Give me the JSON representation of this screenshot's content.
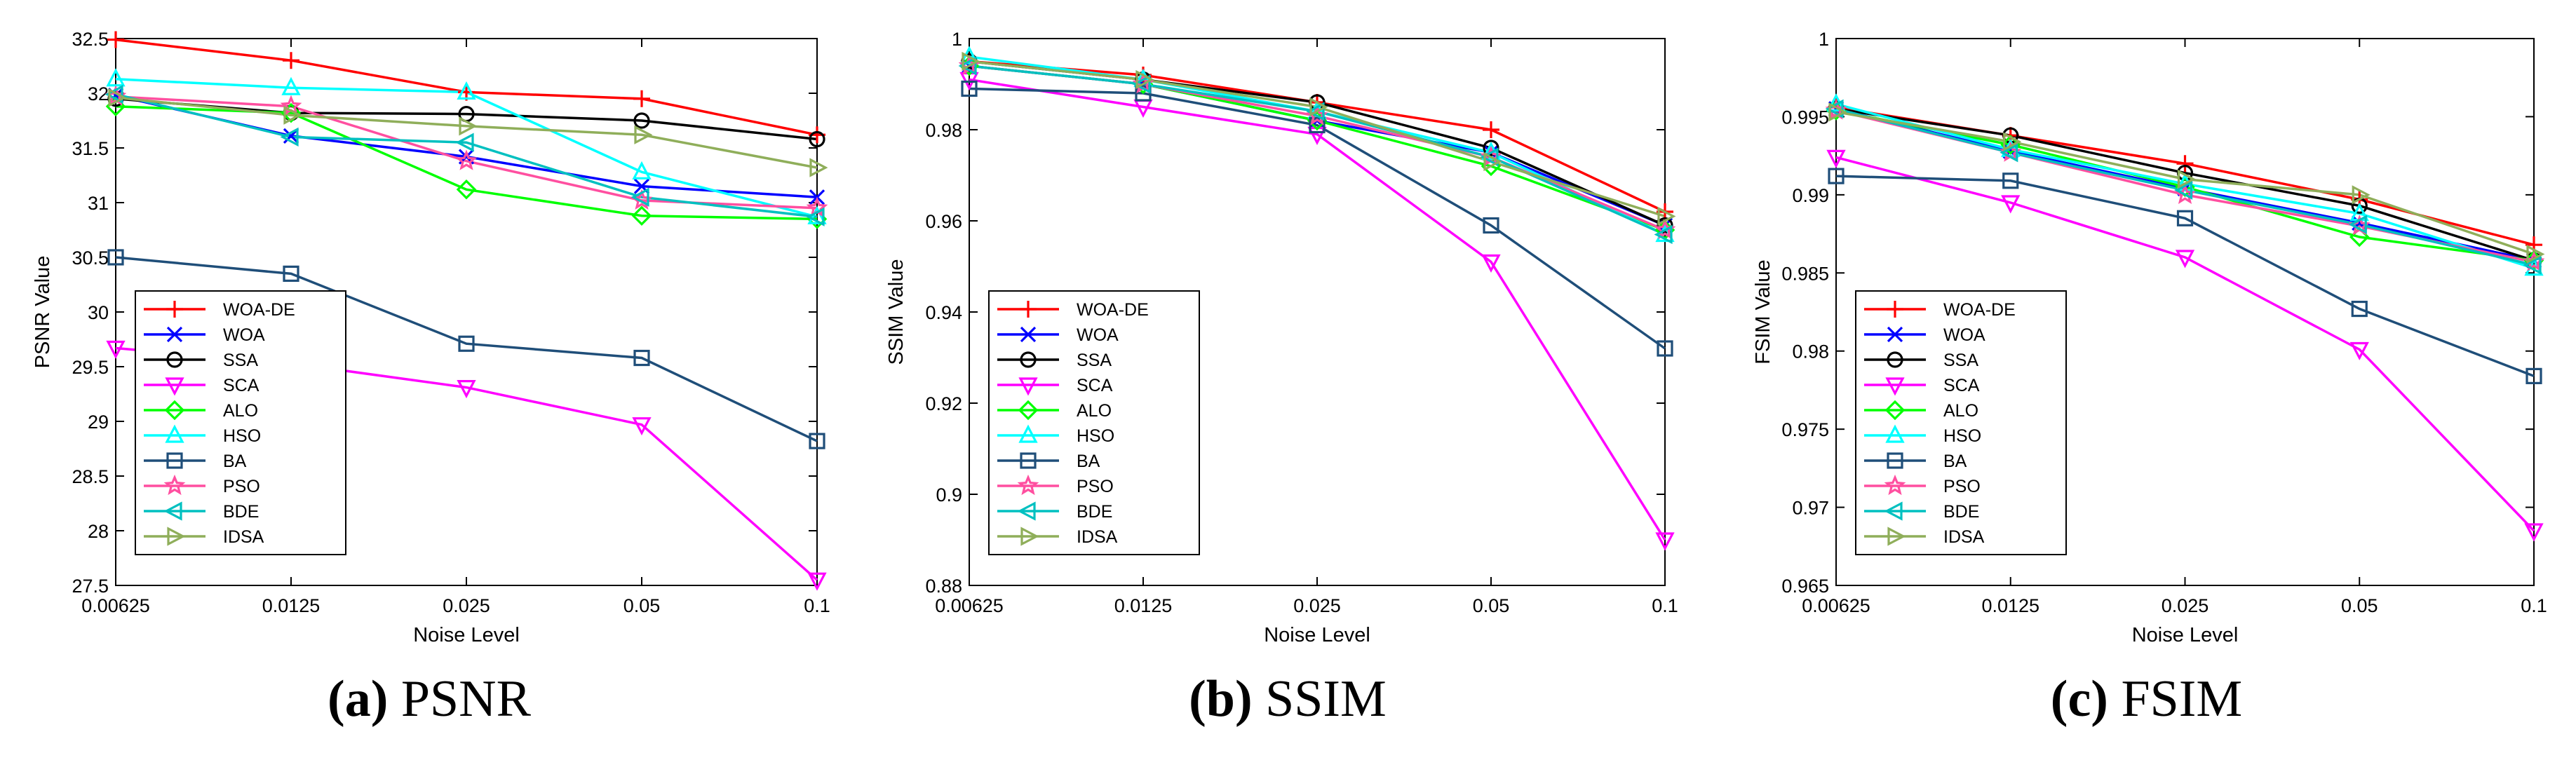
{
  "series_style": [
    {
      "name": "WOA-DE",
      "color": "#ff0000",
      "marker": "plus"
    },
    {
      "name": "WOA",
      "color": "#0000ff",
      "marker": "x"
    },
    {
      "name": "SSA",
      "color": "#000000",
      "marker": "circle"
    },
    {
      "name": "SCA",
      "color": "#ff00ff",
      "marker": "triangle-down"
    },
    {
      "name": "ALO",
      "color": "#00ff00",
      "marker": "diamond"
    },
    {
      "name": "HSO",
      "color": "#00ffff",
      "marker": "triangle-up"
    },
    {
      "name": "BA",
      "color": "#1f4e79",
      "marker": "square"
    },
    {
      "name": "PSO",
      "color": "#ff4fa0",
      "marker": "star"
    },
    {
      "name": "BDE",
      "color": "#00c0c0",
      "marker": "triangle-left"
    },
    {
      "name": "IDSA",
      "color": "#8fae5a",
      "marker": "triangle-right"
    }
  ],
  "chart_data": [
    {
      "type": "line",
      "caption_letter": "(a)",
      "caption_text": "PSNR",
      "xlabel": "Noise Level",
      "ylabel": "PSNR Value",
      "categories": [
        "0.00625",
        "0.0125",
        "0.025",
        "0.05",
        "0.1"
      ],
      "ylim": [
        27.5,
        32.5
      ],
      "yticks": [
        27.5,
        28,
        28.5,
        29,
        29.5,
        30,
        30.5,
        31,
        31.5,
        32,
        32.5
      ],
      "ytick_labels": [
        "27.5",
        "28",
        "28.5",
        "29",
        "29.5",
        "30",
        "30.5",
        "31",
        "31.5",
        "32",
        "32.5"
      ],
      "legend": "lower-left",
      "series": [
        {
          "name": "WOA-DE",
          "values": [
            32.49,
            32.3,
            32.01,
            31.95,
            31.62
          ]
        },
        {
          "name": "WOA",
          "values": [
            31.98,
            31.61,
            31.42,
            31.15,
            31.05
          ]
        },
        {
          "name": "SSA",
          "values": [
            31.95,
            31.82,
            31.81,
            31.75,
            31.58
          ]
        },
        {
          "name": "SCA",
          "values": [
            29.67,
            29.53,
            29.31,
            28.97,
            27.55
          ]
        },
        {
          "name": "ALO",
          "values": [
            31.88,
            31.82,
            31.12,
            30.88,
            30.85
          ]
        },
        {
          "name": "HSO",
          "values": [
            32.13,
            32.05,
            32.01,
            31.28,
            30.87
          ]
        },
        {
          "name": "BA",
          "values": [
            30.5,
            30.35,
            29.71,
            29.58,
            28.82
          ]
        },
        {
          "name": "PSO",
          "values": [
            31.97,
            31.88,
            31.38,
            31.02,
            30.95
          ]
        },
        {
          "name": "BDE",
          "values": [
            31.99,
            31.6,
            31.55,
            31.05,
            30.87
          ]
        },
        {
          "name": "IDSA",
          "values": [
            31.96,
            31.8,
            31.7,
            31.62,
            31.32
          ]
        }
      ]
    },
    {
      "type": "line",
      "caption_letter": "(b)",
      "caption_text": "SSIM",
      "xlabel": "Noise Level",
      "ylabel": "SSIM Value",
      "categories": [
        "0.00625",
        "0.0125",
        "0.025",
        "0.05",
        "0.1"
      ],
      "ylim": [
        0.88,
        1.0
      ],
      "yticks": [
        0.88,
        0.9,
        0.92,
        0.94,
        0.96,
        0.98,
        1.0
      ],
      "ytick_labels": [
        "0.88",
        "0.9",
        "0.92",
        "0.94",
        "0.96",
        "0.98",
        "1"
      ],
      "legend": "lower-left",
      "series": [
        {
          "name": "WOA-DE",
          "values": [
            0.995,
            0.992,
            0.986,
            0.98,
            0.962
          ]
        },
        {
          "name": "WOA",
          "values": [
            0.994,
            0.99,
            0.982,
            0.975,
            0.959
          ]
        },
        {
          "name": "SSA",
          "values": [
            0.995,
            0.991,
            0.986,
            0.976,
            0.959
          ]
        },
        {
          "name": "SCA",
          "values": [
            0.991,
            0.985,
            0.979,
            0.951,
            0.89
          ]
        },
        {
          "name": "ALO",
          "values": [
            0.994,
            0.99,
            0.982,
            0.972,
            0.958
          ]
        },
        {
          "name": "HSO",
          "values": [
            0.996,
            0.991,
            0.984,
            0.975,
            0.957
          ]
        },
        {
          "name": "BA",
          "values": [
            0.989,
            0.988,
            0.981,
            0.959,
            0.932
          ]
        },
        {
          "name": "PSO",
          "values": [
            0.994,
            0.99,
            0.983,
            0.974,
            0.958
          ]
        },
        {
          "name": "BDE",
          "values": [
            0.994,
            0.99,
            0.984,
            0.974,
            0.957
          ]
        },
        {
          "name": "IDSA",
          "values": [
            0.995,
            0.991,
            0.985,
            0.973,
            0.961
          ]
        }
      ]
    },
    {
      "type": "line",
      "caption_letter": "(c)",
      "caption_text": "FSIM",
      "xlabel": "Noise Level",
      "ylabel": "FSIM Value",
      "categories": [
        "0.00625",
        "0.0125",
        "0.025",
        "0.05",
        "0.1"
      ],
      "ylim": [
        0.965,
        1.0
      ],
      "yticks": [
        0.965,
        0.97,
        0.975,
        0.98,
        0.985,
        0.99,
        0.995,
        1.0
      ],
      "ytick_labels": [
        "0.965",
        "0.97",
        "0.975",
        "0.98",
        "0.985",
        "0.99",
        "0.995",
        "1"
      ],
      "legend": "lower-left",
      "series": [
        {
          "name": "WOA-DE",
          "values": [
            0.9956,
            0.9938,
            0.992,
            0.9897,
            0.9868
          ]
        },
        {
          "name": "WOA",
          "values": [
            0.9955,
            0.9928,
            0.9904,
            0.9882,
            0.9858
          ]
        },
        {
          "name": "SSA",
          "values": [
            0.9955,
            0.9938,
            0.9914,
            0.9893,
            0.9858
          ]
        },
        {
          "name": "SCA",
          "values": [
            0.9924,
            0.9895,
            0.986,
            0.9801,
            0.9685
          ]
        },
        {
          "name": "ALO",
          "values": [
            0.9954,
            0.9932,
            0.9905,
            0.9873,
            0.9858
          ]
        },
        {
          "name": "HSO",
          "values": [
            0.9958,
            0.9929,
            0.9907,
            0.9888,
            0.9853
          ]
        },
        {
          "name": "BA",
          "values": [
            0.9912,
            0.9909,
            0.9885,
            0.9827,
            0.9784
          ]
        },
        {
          "name": "PSO",
          "values": [
            0.9954,
            0.9927,
            0.99,
            0.988,
            0.9857
          ]
        },
        {
          "name": "BDE",
          "values": [
            0.9955,
            0.9927,
            0.9903,
            0.9881,
            0.9855
          ]
        },
        {
          "name": "IDSA",
          "values": [
            0.9953,
            0.9934,
            0.991,
            0.99,
            0.9862
          ]
        }
      ]
    }
  ]
}
